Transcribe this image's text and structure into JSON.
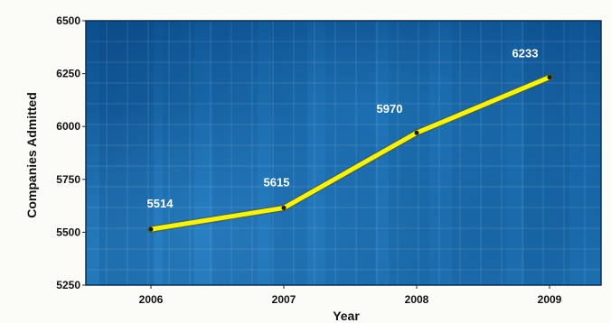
{
  "chart_data": {
    "type": "line",
    "x": [
      "2006",
      "2007",
      "2008",
      "2009"
    ],
    "series": [
      {
        "values": [
          5514,
          5615,
          5970,
          6233
        ]
      }
    ],
    "data_labels": [
      "5514",
      "5615",
      "5970",
      "6233"
    ],
    "xlabel": "Year",
    "ylabel": "Companies Admitted",
    "ylim": [
      5250,
      6500
    ],
    "yticks": [
      5250,
      5500,
      5750,
      6000,
      6250,
      6500
    ],
    "ytick_labels": [
      "5250",
      "5500",
      "5750",
      "6000",
      "6250",
      "6500"
    ],
    "grid": true,
    "colors": {
      "line": "#f2f21c",
      "plot_bg_top": "#0c4f8e",
      "plot_bg_bottom": "#1d6fb0",
      "data_label": "#ffffff"
    }
  }
}
